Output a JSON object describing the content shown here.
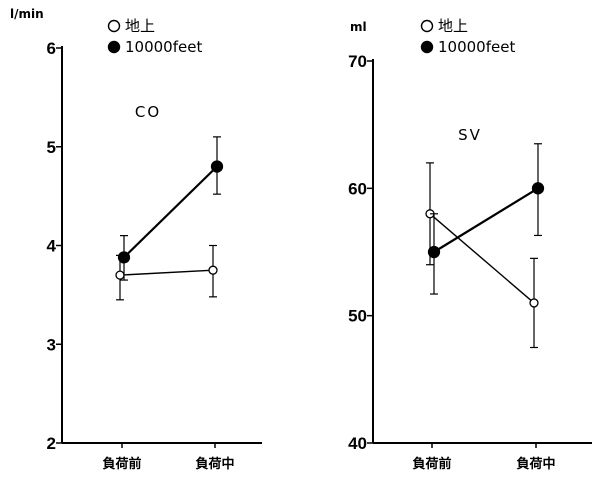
{
  "chart_data": [
    {
      "type": "line",
      "title": "CO",
      "ylabel": "l/min",
      "ylim": [
        2,
        6
      ],
      "yticks": [
        2,
        3,
        4,
        5,
        6
      ],
      "categories": [
        "負荷前",
        "負荷中"
      ],
      "legend_position": "top-left",
      "series": [
        {
          "name": "地上",
          "marker": "open-circle",
          "values": [
            3.7,
            3.75
          ],
          "err_low": [
            3.45,
            3.48
          ],
          "err_high": [
            3.9,
            4.0
          ]
        },
        {
          "name": "10000feet",
          "marker": "filled-circle",
          "values": [
            3.88,
            4.8
          ],
          "err_low": [
            3.65,
            4.52
          ],
          "err_high": [
            4.1,
            5.1
          ]
        }
      ]
    },
    {
      "type": "line",
      "title": "SV",
      "ylabel": "ml",
      "ylim": [
        40,
        70
      ],
      "yticks": [
        40,
        50,
        60,
        70
      ],
      "categories": [
        "負荷前",
        "負荷中"
      ],
      "legend_position": "top-left",
      "series": [
        {
          "name": "地上",
          "marker": "open-circle",
          "values": [
            58,
            51
          ],
          "err_low": [
            54,
            47.5
          ],
          "err_high": [
            62,
            54.5
          ]
        },
        {
          "name": "10000feet",
          "marker": "filled-circle",
          "values": [
            55,
            60
          ],
          "err_low": [
            51.7,
            56.3
          ],
          "err_high": [
            58,
            63.5
          ]
        }
      ]
    }
  ]
}
